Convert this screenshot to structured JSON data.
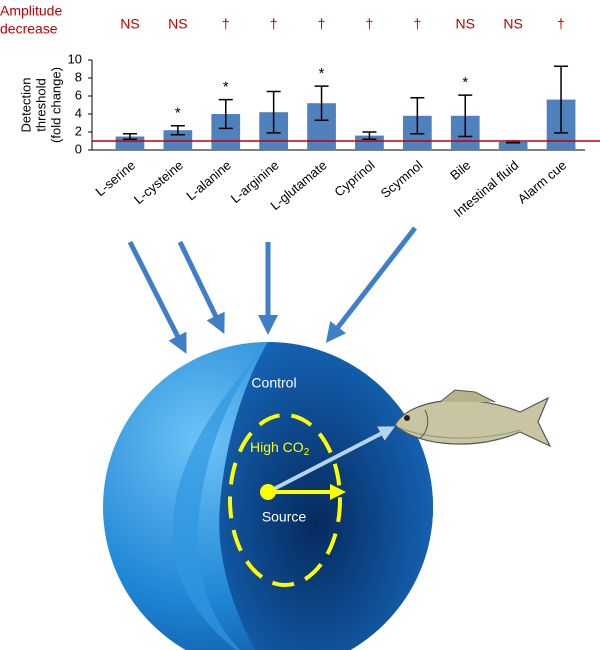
{
  "chart_data": {
    "type": "bar",
    "ylabel_lines": [
      "Detection",
      "threshold",
      "(fold change)"
    ],
    "categories": [
      "L-serine",
      "L-cysteine",
      "L-alanine",
      "L-arginine",
      "L-glutamate",
      "Cyprinol",
      "Scymnol",
      "Bile",
      "Intestinal fluid",
      "Alarm cue"
    ],
    "series": [
      {
        "color": "#4f81bd",
        "values": [
          1.5,
          2.2,
          4.0,
          4.2,
          5.2,
          1.6,
          3.8,
          3.8,
          0.9,
          5.6
        ],
        "errors": [
          0.3,
          0.5,
          1.6,
          2.3,
          1.9,
          0.4,
          2.0,
          2.3,
          0.1,
          3.7
        ]
      }
    ],
    "significance": [
      null,
      "*",
      "*",
      null,
      "*",
      null,
      null,
      "*",
      null,
      null
    ],
    "amplitude_decrease": {
      "label_lines": [
        "Amplitude",
        "decrease"
      ],
      "values": [
        "NS",
        "NS",
        "†",
        "†",
        "†",
        "†",
        "†",
        "NS",
        "NS",
        "†"
      ]
    },
    "reference_line": {
      "value": 1,
      "color": "#c00000"
    },
    "ylim": [
      0,
      10
    ],
    "yticks": [
      0,
      2,
      4,
      6,
      8,
      10
    ]
  },
  "illustration": {
    "control": "Control",
    "high_co2": "High CO",
    "high_co2_sub": "2",
    "source": "Source"
  }
}
